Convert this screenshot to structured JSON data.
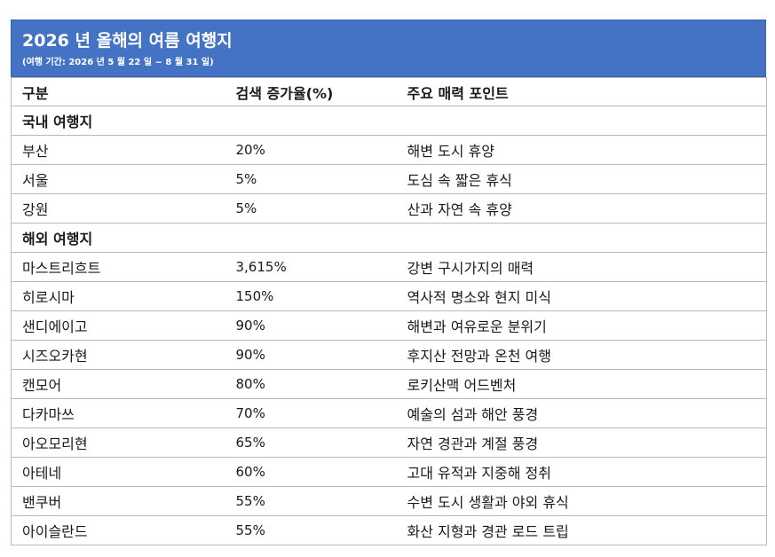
{
  "header": {
    "title": "2026 년 올해의 여름 여행지",
    "subtitle": "(여행 기간: 2026 년 5 월 22 일 ~ 8 월 31 일)"
  },
  "columns": [
    "구분",
    "검색 증가율(%)",
    "주요 매력 포인트"
  ],
  "sections": [
    {
      "label": "국내 여행지",
      "rows": [
        {
          "place": "부산",
          "rate": "20%",
          "point": "해변 도시 휴양"
        },
        {
          "place": "서울",
          "rate": "5%",
          "point": "도심 속 짧은 휴식"
        },
        {
          "place": "강원",
          "rate": "5%",
          "point": "산과 자연 속 휴양"
        }
      ]
    },
    {
      "label": "해외 여행지",
      "rows": [
        {
          "place": "마스트리흐트",
          "rate": "3,615%",
          "point": "강변 구시가지의 매력"
        },
        {
          "place": "히로시마",
          "rate": "150%",
          "point": "역사적 명소와 현지 미식"
        },
        {
          "place": "샌디에이고",
          "rate": "90%",
          "point": "해변과 여유로운 분위기"
        },
        {
          "place": "시즈오카현",
          "rate": "90%",
          "point": "후지산 전망과 온천 여행"
        },
        {
          "place": "캔모어",
          "rate": "80%",
          "point": "로키산맥 어드벤처"
        },
        {
          "place": "다카마쓰",
          "rate": "70%",
          "point": "예술의 섬과 해안 풍경"
        },
        {
          "place": "아오모리현",
          "rate": "65%",
          "point": "자연 경관과 계절 풍경"
        },
        {
          "place": "아테네",
          "rate": "60%",
          "point": "고대 유적과 지중해 정취"
        },
        {
          "place": "밴쿠버",
          "rate": "55%",
          "point": "수변 도시 생활과 야외 휴식"
        },
        {
          "place": "아이슬란드",
          "rate": "55%",
          "point": "화산 지형과 경관 로드 트립"
        }
      ]
    }
  ]
}
